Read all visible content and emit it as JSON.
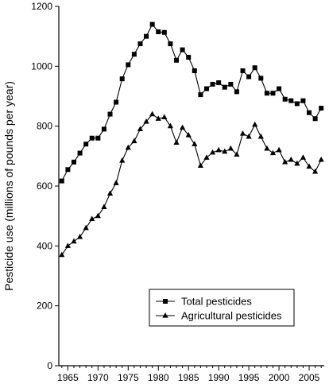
{
  "chart_data": {
    "type": "line",
    "title": "",
    "xlabel": "",
    "ylabel": "Pesticide use (millions of pounds per year)",
    "xlim": [
      1963.5,
      2007.5
    ],
    "ylim": [
      0,
      1200
    ],
    "x_ticks": [
      1965,
      1970,
      1975,
      1980,
      1985,
      1990,
      1995,
      2000,
      2005
    ],
    "y_ticks": [
      0,
      200,
      400,
      600,
      800,
      1000,
      1200
    ],
    "grid": false,
    "legend_position": "bottom-right",
    "x": [
      1964,
      1965,
      1966,
      1967,
      1968,
      1969,
      1970,
      1971,
      1972,
      1973,
      1974,
      1975,
      1976,
      1977,
      1978,
      1979,
      1980,
      1981,
      1982,
      1983,
      1984,
      1985,
      1986,
      1987,
      1988,
      1989,
      1990,
      1991,
      1992,
      1993,
      1994,
      1995,
      1996,
      1997,
      1998,
      1999,
      2000,
      2001,
      2002,
      2003,
      2004,
      2005,
      2006,
      2007
    ],
    "series": [
      {
        "name": "Total pesticides",
        "marker": "square",
        "values": [
          617,
          655,
          680,
          710,
          740,
          760,
          760,
          790,
          840,
          880,
          958,
          1005,
          1040,
          1075,
          1100,
          1140,
          1115,
          1113,
          1075,
          1020,
          1055,
          1030,
          985,
          905,
          925,
          940,
          945,
          930,
          940,
          915,
          985,
          965,
          995,
          960,
          910,
          910,
          925,
          890,
          885,
          875,
          885,
          845,
          825,
          860
        ]
      },
      {
        "name": "Agricultural pesticides",
        "marker": "triangle",
        "values": [
          370,
          400,
          415,
          430,
          460,
          490,
          500,
          530,
          575,
          610,
          685,
          728,
          750,
          790,
          815,
          840,
          825,
          830,
          800,
          745,
          795,
          770,
          740,
          668,
          695,
          712,
          720,
          715,
          725,
          705,
          775,
          765,
          805,
          765,
          725,
          710,
          720,
          680,
          688,
          675,
          695,
          665,
          648,
          688
        ]
      }
    ]
  }
}
